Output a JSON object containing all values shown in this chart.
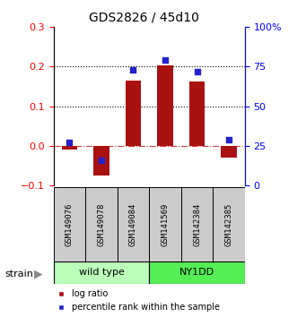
{
  "title": "GDS2826 / 45d10",
  "samples": [
    "GSM149076",
    "GSM149078",
    "GSM149084",
    "GSM141569",
    "GSM142384",
    "GSM142385"
  ],
  "log_ratios": [
    -0.01,
    -0.075,
    0.165,
    0.202,
    0.162,
    -0.03
  ],
  "percentile_ranks_pct": [
    27,
    16,
    73,
    79,
    72,
    29
  ],
  "bar_color": "#aa1111",
  "dot_color": "#2222cc",
  "ylim_left": [
    -0.1,
    0.3
  ],
  "ylim_right": [
    0,
    100
  ],
  "yticks_left": [
    -0.1,
    0.0,
    0.1,
    0.2,
    0.3
  ],
  "yticks_right": [
    0,
    25,
    50,
    75,
    100
  ],
  "hlines": [
    0.0,
    0.1,
    0.2
  ],
  "hline_styles": [
    "dashdot",
    "dotted",
    "dotted"
  ],
  "hline_colors": [
    "#cc4444",
    "#000000",
    "#000000"
  ],
  "group_wt_color": "#bbffbb",
  "group_ny_color": "#55ee55",
  "sample_box_color": "#cccccc",
  "background_color": "#ffffff"
}
